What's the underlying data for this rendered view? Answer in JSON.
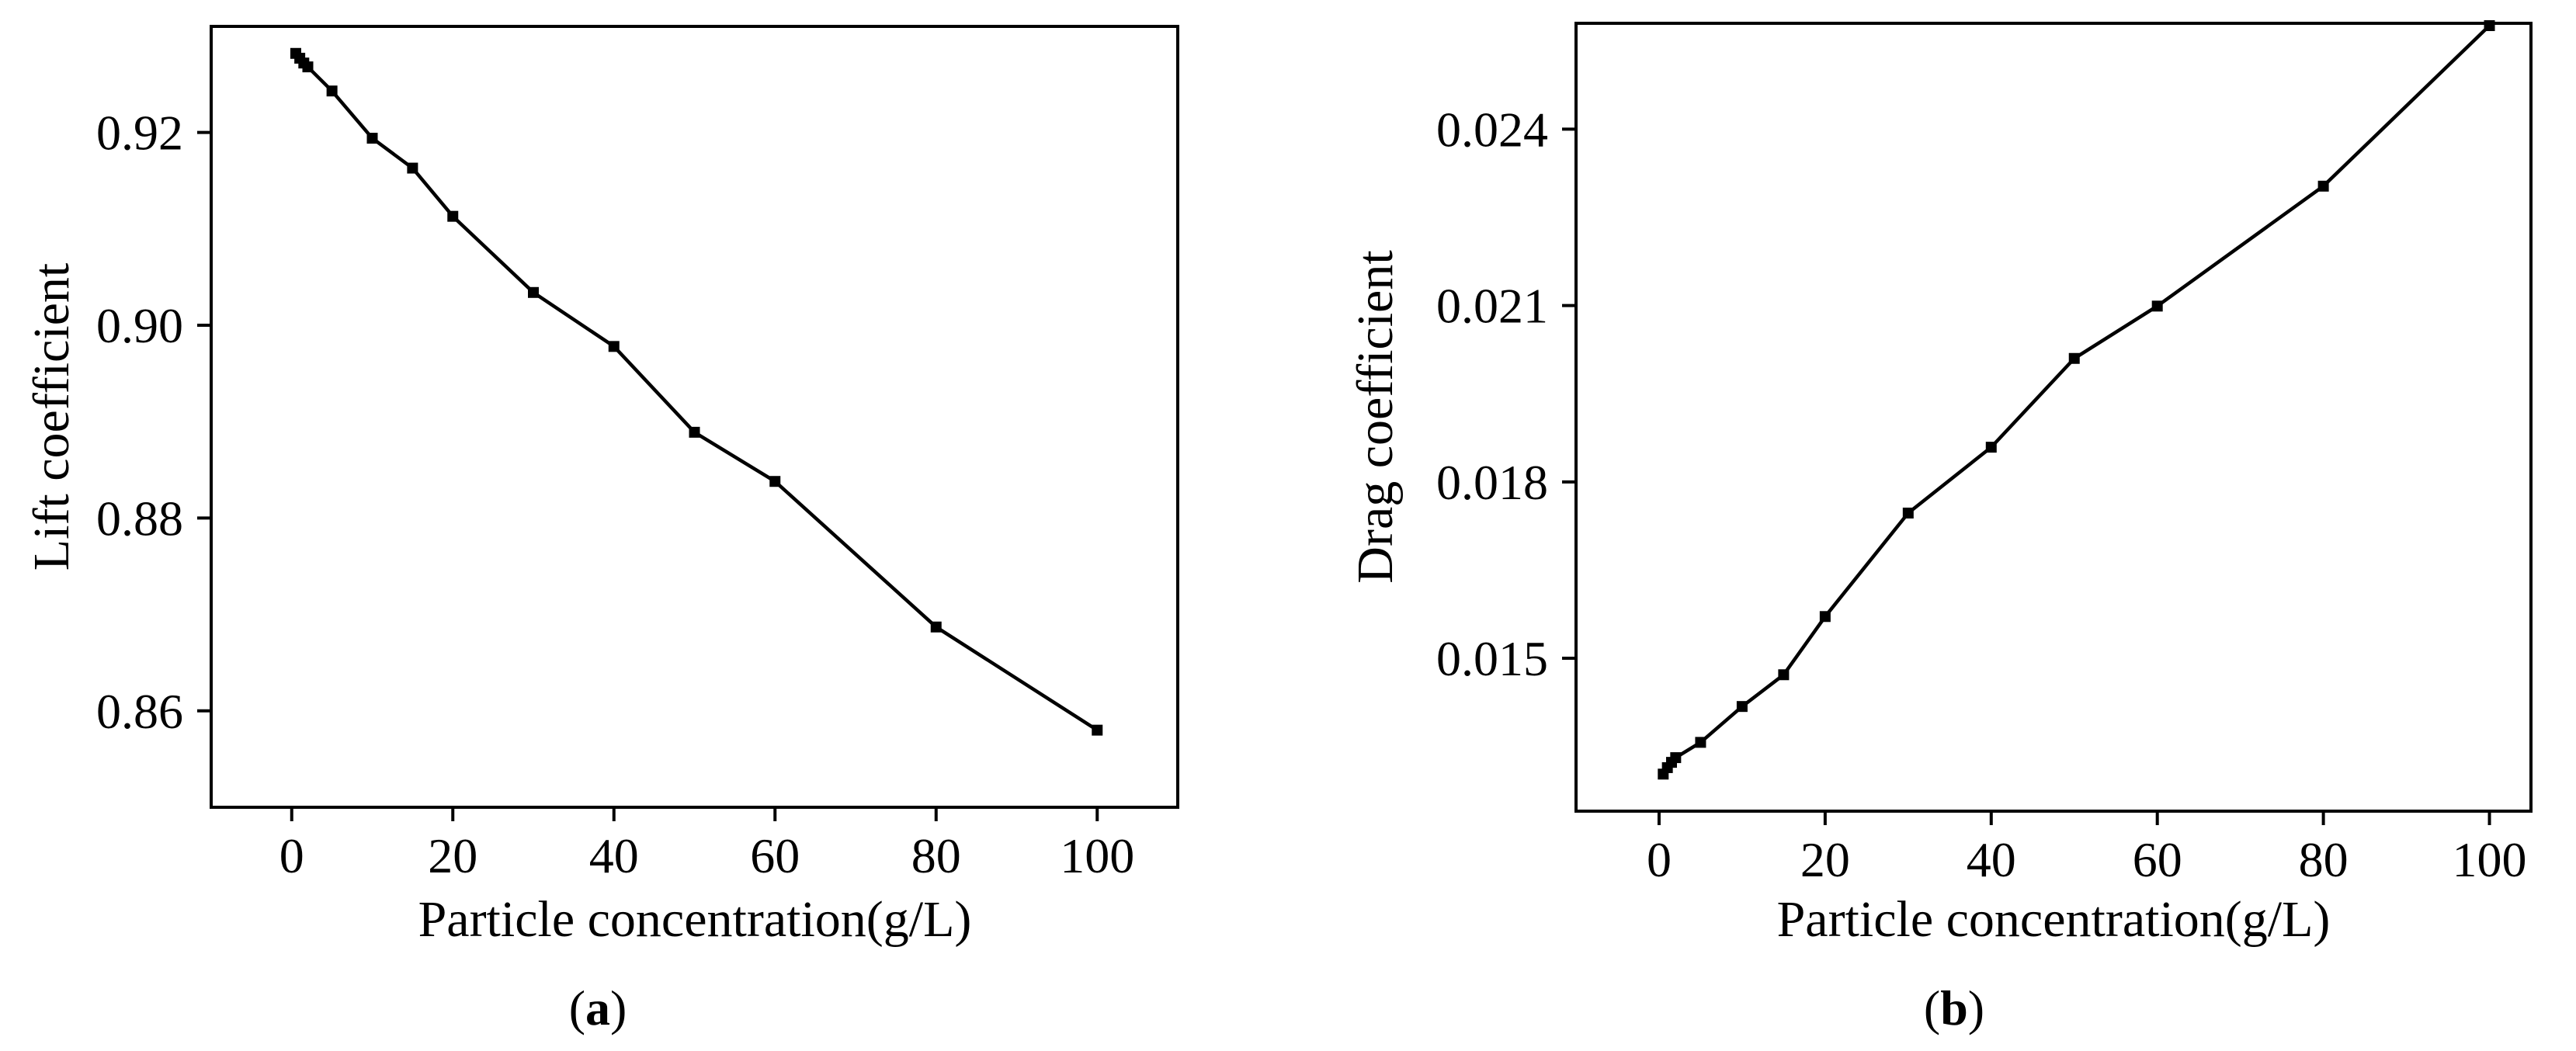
{
  "chart_data": [
    {
      "type": "line",
      "panel_label": "a",
      "xlabel": "Particle concentration(g/L)",
      "ylabel": "Lift coefficient",
      "xlim": [
        -10,
        110
      ],
      "ylim": [
        0.85,
        0.931
      ],
      "xticks": [
        "0",
        "20",
        "40",
        "60",
        "80",
        "100"
      ],
      "yticks": [
        "0.86",
        "0.88",
        "0.90",
        "0.92"
      ],
      "series": [
        {
          "x": [
            0.5,
            1,
            1.5,
            2,
            5,
            10,
            15,
            20,
            30,
            40,
            50,
            60,
            80,
            100
          ],
          "y": [
            0.9282,
            0.9277,
            0.9272,
            0.9268,
            0.9243,
            0.9194,
            0.9163,
            0.9113,
            0.9034,
            0.8978,
            0.8889,
            0.8838,
            0.8687,
            0.858
          ]
        }
      ]
    },
    {
      "type": "line",
      "panel_label": "b",
      "xlabel": "Particle concentration(g/L)",
      "ylabel": "Drag coefficient",
      "xlim": [
        -10,
        105
      ],
      "ylim": [
        0.0124,
        0.0258
      ],
      "xticks": [
        "0",
        "20",
        "40",
        "60",
        "80",
        "100"
      ],
      "yticks": [
        "0.015",
        "0.018",
        "0.021",
        "0.024"
      ],
      "series": [
        {
          "x": [
            0.5,
            1,
            1.5,
            2,
            5,
            10,
            15,
            20,
            30,
            40,
            50,
            60,
            80,
            100
          ],
          "y": [
            0.01303,
            0.01314,
            0.01323,
            0.01331,
            0.01357,
            0.01418,
            0.01472,
            0.01571,
            0.01747,
            0.01859,
            0.0201,
            0.02099,
            0.02303,
            0.02576
          ]
        }
      ]
    }
  ]
}
